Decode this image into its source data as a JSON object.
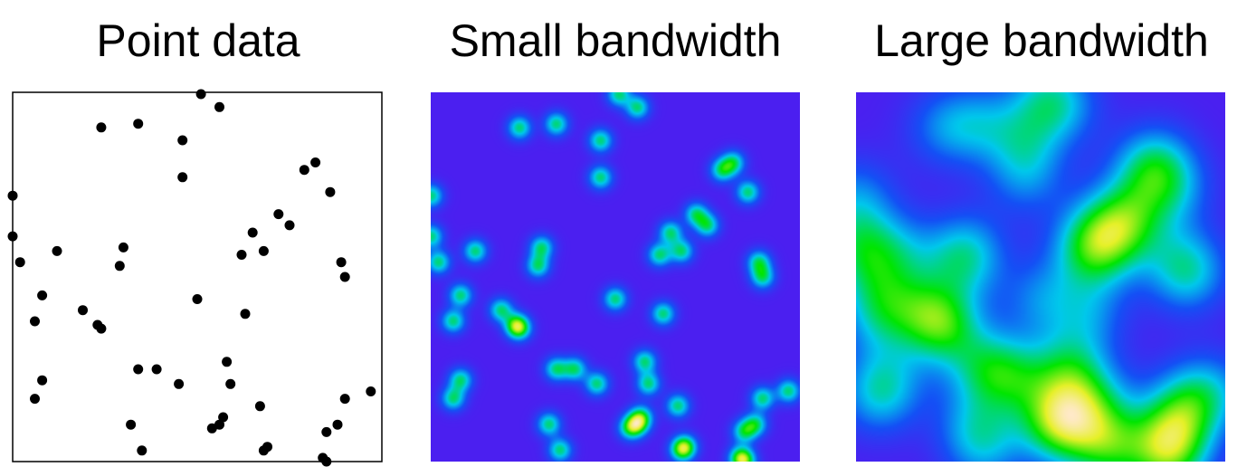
{
  "panels": {
    "point_data_title": "Point data",
    "small_bandwidth_title": "Small bandwidth",
    "large_bandwidth_title": "Large bandwidth"
  },
  "colors": {
    "point": "#000000",
    "density_low": "#4b1ff0",
    "density_mid": "#00e600",
    "density_high": "#ffe9c8"
  },
  "points": [
    [
      0.51,
      0.005
    ],
    [
      0.56,
      0.04
    ],
    [
      0.24,
      0.095
    ],
    [
      0.34,
      0.085
    ],
    [
      0.46,
      0.13
    ],
    [
      0.46,
      0.23
    ],
    [
      0.79,
      0.21
    ],
    [
      0.82,
      0.19
    ],
    [
      0.86,
      0.27
    ],
    [
      0.0,
      0.28
    ],
    [
      0.72,
      0.33
    ],
    [
      0.75,
      0.36
    ],
    [
      0.65,
      0.38
    ],
    [
      0.0,
      0.39
    ],
    [
      0.12,
      0.43
    ],
    [
      0.3,
      0.42
    ],
    [
      0.62,
      0.44
    ],
    [
      0.68,
      0.43
    ],
    [
      0.02,
      0.46
    ],
    [
      0.29,
      0.47
    ],
    [
      0.89,
      0.46
    ],
    [
      0.9,
      0.5
    ],
    [
      0.08,
      0.55
    ],
    [
      0.5,
      0.56
    ],
    [
      0.19,
      0.59
    ],
    [
      0.23,
      0.63
    ],
    [
      0.24,
      0.64
    ],
    [
      0.63,
      0.6
    ],
    [
      0.06,
      0.62
    ],
    [
      0.34,
      0.75
    ],
    [
      0.39,
      0.75
    ],
    [
      0.58,
      0.73
    ],
    [
      0.45,
      0.79
    ],
    [
      0.59,
      0.79
    ],
    [
      0.08,
      0.78
    ],
    [
      0.06,
      0.83
    ],
    [
      0.97,
      0.81
    ],
    [
      0.9,
      0.83
    ],
    [
      0.67,
      0.85
    ],
    [
      0.57,
      0.88
    ],
    [
      0.54,
      0.91
    ],
    [
      0.88,
      0.9
    ],
    [
      0.32,
      0.9
    ],
    [
      0.56,
      0.9
    ],
    [
      0.85,
      0.92
    ],
    [
      0.69,
      0.96
    ],
    [
      0.35,
      0.97
    ],
    [
      0.68,
      0.97
    ],
    [
      0.84,
      0.99
    ],
    [
      0.85,
      1.0
    ]
  ]
}
